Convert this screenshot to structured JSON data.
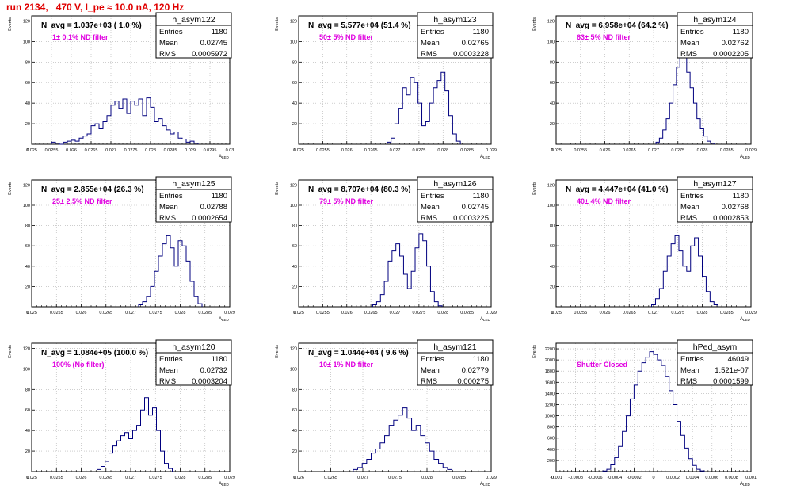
{
  "page": {
    "title": "run 2134,   470 V, I_pe ≈ 10.0 nA, 120 Hz",
    "x_axis_label": "A",
    "x_axis_subscript": "LED",
    "y_axis_label": "Events",
    "stats_labels": [
      "Entries",
      "Mean",
      "RMS"
    ]
  },
  "colors": {
    "title": "#e00000",
    "annotation": "#e000e0",
    "histogram": "#00007f",
    "frame": "#000000",
    "grid": "#b0b0b0"
  },
  "chart_data": [
    {
      "type": "histogram",
      "name": "h_asym122",
      "n_avg_text": "N_avg = 1.037e+03 ( 1.0 %)",
      "annotation": "1± 0.1% ND filter",
      "stats": {
        "entries": "1180",
        "mean": "0.02745",
        "rms": "0.0005972"
      },
      "xlim": [
        0.025,
        0.03
      ],
      "ylim": [
        0,
        125
      ],
      "xticks": [
        "0.025",
        "0.0255",
        "0.026",
        "0.0265",
        "0.027",
        "0.0275",
        "0.028",
        "0.0285",
        "0.029",
        "0.0295",
        "0.03"
      ],
      "xtick_values": [
        0.025,
        0.0255,
        0.026,
        0.0265,
        0.027,
        0.0275,
        0.028,
        0.0285,
        0.029,
        0.0295,
        0.03
      ],
      "yticks": [
        20,
        40,
        60,
        80,
        100,
        120
      ],
      "bins": [
        [
          0.0255,
          2
        ],
        [
          0.0256,
          1
        ],
        [
          0.0257,
          0
        ],
        [
          0.0258,
          2
        ],
        [
          0.0259,
          3
        ],
        [
          0.026,
          4
        ],
        [
          0.0261,
          3
        ],
        [
          0.0262,
          6
        ],
        [
          0.0263,
          8
        ],
        [
          0.0264,
          10
        ],
        [
          0.0265,
          18
        ],
        [
          0.0266,
          20
        ],
        [
          0.0267,
          15
        ],
        [
          0.0268,
          22
        ],
        [
          0.0269,
          28
        ],
        [
          0.027,
          38
        ],
        [
          0.0271,
          42
        ],
        [
          0.0272,
          35
        ],
        [
          0.0273,
          44
        ],
        [
          0.0274,
          30
        ],
        [
          0.0275,
          42
        ],
        [
          0.0276,
          38
        ],
        [
          0.0277,
          44
        ],
        [
          0.0278,
          28
        ],
        [
          0.0279,
          45
        ],
        [
          0.028,
          36
        ],
        [
          0.0281,
          22
        ],
        [
          0.0282,
          25
        ],
        [
          0.0283,
          18
        ],
        [
          0.0284,
          14
        ],
        [
          0.0285,
          10
        ],
        [
          0.0286,
          12
        ],
        [
          0.0287,
          6
        ],
        [
          0.0288,
          5
        ],
        [
          0.0289,
          2
        ],
        [
          0.029,
          3
        ],
        [
          0.0291,
          1
        ]
      ]
    },
    {
      "type": "histogram",
      "name": "h_asym123",
      "n_avg_text": "N_avg = 5.577e+04 (51.4 %)",
      "annotation": "50± 5% ND filter",
      "stats": {
        "entries": "1180",
        "mean": "0.02765",
        "rms": "0.0003228"
      },
      "xlim": [
        0.025,
        0.029
      ],
      "ylim": [
        0,
        125
      ],
      "xticks": [
        "0.025",
        "0.0255",
        "0.026",
        "0.0265",
        "0.027",
        "0.0275",
        "0.028",
        "0.0285",
        "0.029"
      ],
      "xtick_values": [
        0.025,
        0.0255,
        0.026,
        0.0265,
        0.027,
        0.0275,
        0.028,
        0.0285,
        0.029
      ],
      "yticks": [
        20,
        40,
        60,
        80,
        100,
        120
      ],
      "bins": [
        [
          0.02684,
          2
        ],
        [
          0.02692,
          6
        ],
        [
          0.027,
          20
        ],
        [
          0.02708,
          35
        ],
        [
          0.02716,
          55
        ],
        [
          0.02724,
          48
        ],
        [
          0.02732,
          65
        ],
        [
          0.0274,
          60
        ],
        [
          0.02748,
          40
        ],
        [
          0.02756,
          18
        ],
        [
          0.02764,
          22
        ],
        [
          0.02772,
          40
        ],
        [
          0.0278,
          55
        ],
        [
          0.02788,
          62
        ],
        [
          0.02796,
          70
        ],
        [
          0.02804,
          52
        ],
        [
          0.02812,
          28
        ],
        [
          0.0282,
          10
        ],
        [
          0.02828,
          3
        ]
      ]
    },
    {
      "type": "histogram",
      "name": "h_asym124",
      "n_avg_text": "N_avg = 6.958e+04 (64.2 %)",
      "annotation": "63± 5% ND filter",
      "stats": {
        "entries": "1180",
        "mean": "0.02762",
        "rms": "0.0002205"
      },
      "xlim": [
        0.025,
        0.029
      ],
      "ylim": [
        0,
        125
      ],
      "xticks": [
        "0.025",
        "0.0255",
        "0.026",
        "0.0265",
        "0.027",
        "0.0275",
        "0.028",
        "0.0285",
        "0.029"
      ],
      "xtick_values": [
        0.025,
        0.0255,
        0.026,
        0.0265,
        0.027,
        0.0275,
        0.028,
        0.0285,
        0.029
      ],
      "yticks": [
        20,
        40,
        60,
        80,
        100,
        120
      ],
      "bins": [
        [
          0.02705,
          2
        ],
        [
          0.02712,
          6
        ],
        [
          0.02719,
          14
        ],
        [
          0.02726,
          25
        ],
        [
          0.02733,
          40
        ],
        [
          0.0274,
          58
        ],
        [
          0.02747,
          75
        ],
        [
          0.02754,
          85
        ],
        [
          0.02761,
          100
        ],
        [
          0.02768,
          70
        ],
        [
          0.02775,
          55
        ],
        [
          0.02782,
          40
        ],
        [
          0.02789,
          25
        ],
        [
          0.02796,
          15
        ],
        [
          0.02803,
          8
        ],
        [
          0.0281,
          3
        ],
        [
          0.02817,
          1
        ]
      ]
    },
    {
      "type": "histogram",
      "name": "h_asym125",
      "n_avg_text": "N_avg = 2.855e+04 (26.3 %)",
      "annotation": "25± 2.5% ND filter",
      "stats": {
        "entries": "1180",
        "mean": "0.02788",
        "rms": "0.0002654"
      },
      "xlim": [
        0.025,
        0.029
      ],
      "ylim": [
        0,
        125
      ],
      "xticks": [
        "0.025",
        "0.0255",
        "0.026",
        "0.0265",
        "0.027",
        "0.0275",
        "0.028",
        "0.0285",
        "0.029"
      ],
      "xtick_values": [
        0.025,
        0.0255,
        0.026,
        0.0265,
        0.027,
        0.0275,
        0.028,
        0.0285,
        0.029
      ],
      "yticks": [
        20,
        40,
        60,
        80,
        100,
        120
      ],
      "bins": [
        [
          0.02716,
          2
        ],
        [
          0.02724,
          5
        ],
        [
          0.02732,
          10
        ],
        [
          0.0274,
          20
        ],
        [
          0.02748,
          35
        ],
        [
          0.02756,
          50
        ],
        [
          0.02764,
          62
        ],
        [
          0.02772,
          70
        ],
        [
          0.0278,
          58
        ],
        [
          0.02788,
          40
        ],
        [
          0.02796,
          65
        ],
        [
          0.02804,
          60
        ],
        [
          0.02812,
          45
        ],
        [
          0.0282,
          25
        ],
        [
          0.02828,
          10
        ],
        [
          0.02836,
          3
        ]
      ]
    },
    {
      "type": "histogram",
      "name": "h_asym126",
      "n_avg_text": "N_avg = 8.707e+04 (80.3 %)",
      "annotation": "79± 5% ND filter",
      "stats": {
        "entries": "1180",
        "mean": "0.02745",
        "rms": "0.0003225"
      },
      "xlim": [
        0.025,
        0.029
      ],
      "ylim": [
        0,
        125
      ],
      "xticks": [
        "0.025",
        "0.0255",
        "0.026",
        "0.0265",
        "0.027",
        "0.0275",
        "0.028",
        "0.0285",
        "0.029"
      ],
      "xtick_values": [
        0.025,
        0.0255,
        0.026,
        0.0265,
        0.027,
        0.0275,
        0.028,
        0.0285,
        0.029
      ],
      "yticks": [
        20,
        40,
        60,
        80,
        100,
        120
      ],
      "bins": [
        [
          0.02654,
          2
        ],
        [
          0.02662,
          5
        ],
        [
          0.0267,
          12
        ],
        [
          0.02678,
          25
        ],
        [
          0.02686,
          45
        ],
        [
          0.02694,
          55
        ],
        [
          0.02702,
          62
        ],
        [
          0.0271,
          50
        ],
        [
          0.02718,
          32
        ],
        [
          0.02726,
          18
        ],
        [
          0.02734,
          35
        ],
        [
          0.02742,
          58
        ],
        [
          0.0275,
          72
        ],
        [
          0.02758,
          65
        ],
        [
          0.02766,
          40
        ],
        [
          0.02774,
          15
        ],
        [
          0.02782,
          5
        ],
        [
          0.0279,
          1
        ]
      ]
    },
    {
      "type": "histogram",
      "name": "h_asym127",
      "n_avg_text": "N_avg = 4.447e+04 (41.0 %)",
      "annotation": "40± 4% ND filter",
      "stats": {
        "entries": "1180",
        "mean": "0.02768",
        "rms": "0.0002853"
      },
      "xlim": [
        0.025,
        0.029
      ],
      "ylim": [
        0,
        125
      ],
      "xticks": [
        "0.025",
        "0.0255",
        "0.026",
        "0.0265",
        "0.027",
        "0.0275",
        "0.028",
        "0.0285",
        "0.029"
      ],
      "xtick_values": [
        0.025,
        0.0255,
        0.026,
        0.0265,
        0.027,
        0.0275,
        0.028,
        0.0285,
        0.029
      ],
      "yticks": [
        20,
        40,
        60,
        80,
        100,
        120
      ],
      "bins": [
        [
          0.02696,
          2
        ],
        [
          0.02704,
          8
        ],
        [
          0.02712,
          18
        ],
        [
          0.0272,
          35
        ],
        [
          0.02728,
          50
        ],
        [
          0.02736,
          62
        ],
        [
          0.02744,
          70
        ],
        [
          0.02752,
          55
        ],
        [
          0.0276,
          40
        ],
        [
          0.02768,
          35
        ],
        [
          0.02776,
          60
        ],
        [
          0.02784,
          68
        ],
        [
          0.02792,
          50
        ],
        [
          0.028,
          30
        ],
        [
          0.02808,
          15
        ],
        [
          0.02816,
          5
        ],
        [
          0.02824,
          2
        ]
      ]
    },
    {
      "type": "histogram",
      "name": "h_asym120",
      "n_avg_text": "N_avg = 1.084e+05 (100.0 %)",
      "annotation": "100% (No filter)",
      "stats": {
        "entries": "1180",
        "mean": "0.02732",
        "rms": "0.0003204"
      },
      "xlim": [
        0.025,
        0.029
      ],
      "ylim": [
        0,
        125
      ],
      "xticks": [
        "0.025",
        "0.0255",
        "0.026",
        "0.0265",
        "0.027",
        "0.0275",
        "0.028",
        "0.0285",
        "0.029"
      ],
      "xtick_values": [
        0.025,
        0.0255,
        0.026,
        0.0265,
        0.027,
        0.0275,
        0.028,
        0.0285,
        0.029
      ],
      "yticks": [
        20,
        40,
        60,
        80,
        100,
        120
      ],
      "bins": [
        [
          0.02632,
          2
        ],
        [
          0.0264,
          5
        ],
        [
          0.02648,
          10
        ],
        [
          0.02656,
          18
        ],
        [
          0.02664,
          25
        ],
        [
          0.02672,
          30
        ],
        [
          0.0268,
          35
        ],
        [
          0.02688,
          38
        ],
        [
          0.02696,
          32
        ],
        [
          0.02704,
          40
        ],
        [
          0.02712,
          45
        ],
        [
          0.0272,
          60
        ],
        [
          0.02728,
          72
        ],
        [
          0.02736,
          55
        ],
        [
          0.02744,
          62
        ],
        [
          0.02752,
          40
        ],
        [
          0.0276,
          20
        ],
        [
          0.02768,
          8
        ],
        [
          0.02776,
          3
        ]
      ]
    },
    {
      "type": "histogram",
      "name": "h_asym121",
      "n_avg_text": "N_avg = 1.044e+04 ( 9.6 %)",
      "annotation": "10± 1% ND filter",
      "stats": {
        "entries": "1180",
        "mean": "0.02779",
        "rms": "0.000275"
      },
      "xlim": [
        0.026,
        0.029
      ],
      "ylim": [
        0,
        125
      ],
      "xticks": [
        "0.026",
        "0.0265",
        "0.027",
        "0.0275",
        "0.028",
        "0.0285",
        "0.029"
      ],
      "xtick_values": [
        0.026,
        0.0265,
        0.027,
        0.0275,
        0.028,
        0.0285,
        0.029
      ],
      "yticks": [
        20,
        40,
        60,
        80,
        100,
        120
      ],
      "bins": [
        [
          0.02685,
          2
        ],
        [
          0.02692,
          4
        ],
        [
          0.02699,
          8
        ],
        [
          0.02706,
          12
        ],
        [
          0.02713,
          18
        ],
        [
          0.0272,
          22
        ],
        [
          0.02727,
          28
        ],
        [
          0.02734,
          35
        ],
        [
          0.02741,
          45
        ],
        [
          0.02748,
          50
        ],
        [
          0.02755,
          55
        ],
        [
          0.02762,
          62
        ],
        [
          0.02769,
          52
        ],
        [
          0.02776,
          40
        ],
        [
          0.02783,
          45
        ],
        [
          0.0279,
          35
        ],
        [
          0.02797,
          28
        ],
        [
          0.02804,
          20
        ],
        [
          0.02811,
          12
        ],
        [
          0.02818,
          8
        ],
        [
          0.02825,
          4
        ],
        [
          0.02832,
          2
        ]
      ]
    },
    {
      "type": "histogram",
      "name": "hPed_asym",
      "n_avg_text": "",
      "annotation": "Shutter Closed",
      "stats": {
        "entries": "46049",
        "mean": "1.521e-07",
        "rms": "0.0001599"
      },
      "xlim": [
        -0.001,
        0.001
      ],
      "ylim": [
        0,
        2300
      ],
      "xticks": [
        "-0.001",
        "-0.0008",
        "-0.0006",
        "-0.0004",
        "-0.0002",
        "0",
        "0.0002",
        "0.0004",
        "0.0006",
        "0.0008",
        "0.001"
      ],
      "xtick_values": [
        -0.001,
        -0.0008,
        -0.0006,
        -0.0004,
        -0.0002,
        0,
        0.0002,
        0.0004,
        0.0006,
        0.0008,
        0.001
      ],
      "yticks": [
        200,
        400,
        600,
        800,
        1000,
        1200,
        1400,
        1600,
        1800,
        2000,
        2200
      ],
      "bins": [
        [
          -0.00052,
          10
        ],
        [
          -0.00048,
          40
        ],
        [
          -0.00044,
          120
        ],
        [
          -0.0004,
          250
        ],
        [
          -0.00036,
          450
        ],
        [
          -0.00032,
          720
        ],
        [
          -0.00028,
          1000
        ],
        [
          -0.00024,
          1300
        ],
        [
          -0.0002,
          1550
        ],
        [
          -0.00016,
          1800
        ],
        [
          -0.00012,
          1950
        ],
        [
          -8e-05,
          2050
        ],
        [
          -4e-05,
          2150
        ],
        [
          0,
          2100
        ],
        [
          4e-05,
          2000
        ],
        [
          8e-05,
          1900
        ],
        [
          0.00012,
          1700
        ],
        [
          0.00016,
          1450
        ],
        [
          0.0002,
          1200
        ],
        [
          0.00024,
          900
        ],
        [
          0.00028,
          650
        ],
        [
          0.00032,
          420
        ],
        [
          0.00036,
          230
        ],
        [
          0.0004,
          110
        ],
        [
          0.00044,
          40
        ],
        [
          0.00048,
          12
        ]
      ]
    }
  ]
}
